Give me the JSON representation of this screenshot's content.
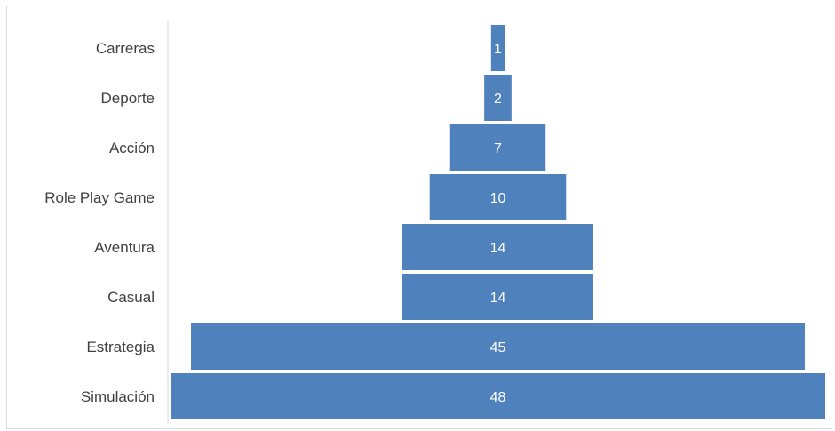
{
  "chart_data": {
    "type": "bar",
    "orientation": "horizontal-funnel",
    "categories": [
      "Carreras",
      "Deporte",
      "Acción",
      "Role Play Game",
      "Aventura",
      "Casual",
      "Estrategia",
      "Simulación"
    ],
    "values": [
      1,
      2,
      7,
      10,
      14,
      14,
      45,
      48
    ],
    "title": "",
    "xlabel": "",
    "ylabel": "",
    "xlim": [
      0,
      48
    ],
    "grid": false,
    "legend": "none",
    "data_labels": true,
    "bar_color": "#4f81bd",
    "label_color": "#ffffff",
    "category_label_color": "#404040"
  }
}
